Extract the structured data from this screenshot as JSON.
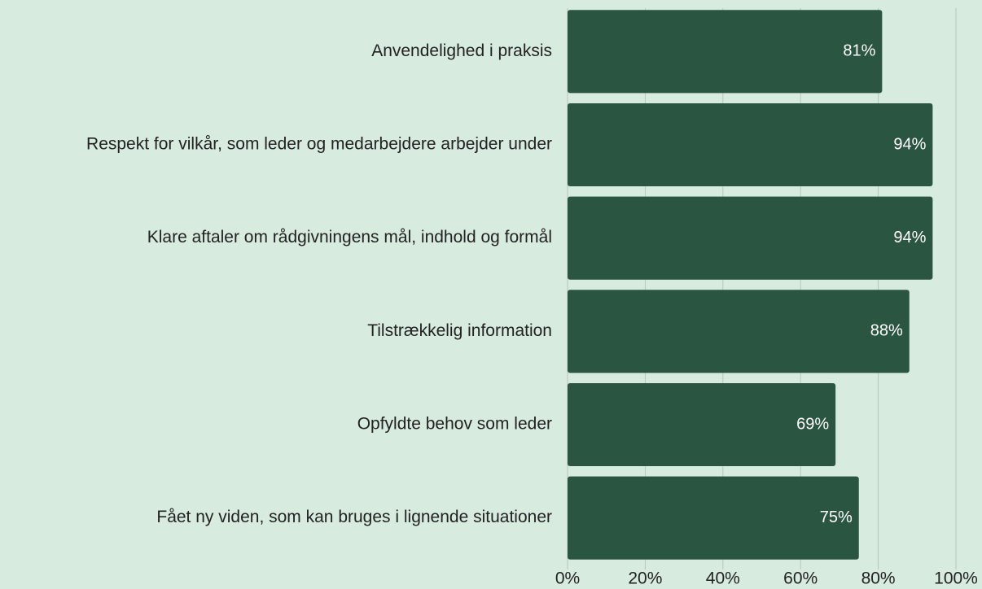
{
  "chart_data": {
    "type": "barh",
    "categories": [
      "Anvendelighed i praksis",
      "Respekt for vilkår, som leder og medarbejdere arbejder under",
      "Klare aftaler om rådgivningens mål, indhold og formål",
      "Tilstrækkelig information",
      "Opfyldte behov som leder",
      "Fået ny viden, som kan bruges i lignende situationer"
    ],
    "values": [
      81,
      94,
      94,
      88,
      69,
      75
    ],
    "value_labels": [
      "81%",
      "94%",
      "94%",
      "88%",
      "69%",
      "75%"
    ],
    "color": "#2a5641",
    "xlim": [
      0,
      100
    ],
    "xticks": [
      {
        "value": 0,
        "label": "0%"
      },
      {
        "value": 20,
        "label": "20%"
      },
      {
        "value": 40,
        "label": "40%"
      },
      {
        "value": 60,
        "label": "60%"
      },
      {
        "value": 80,
        "label": "80%"
      },
      {
        "value": 100,
        "label": "100%"
      }
    ],
    "grid": true
  }
}
